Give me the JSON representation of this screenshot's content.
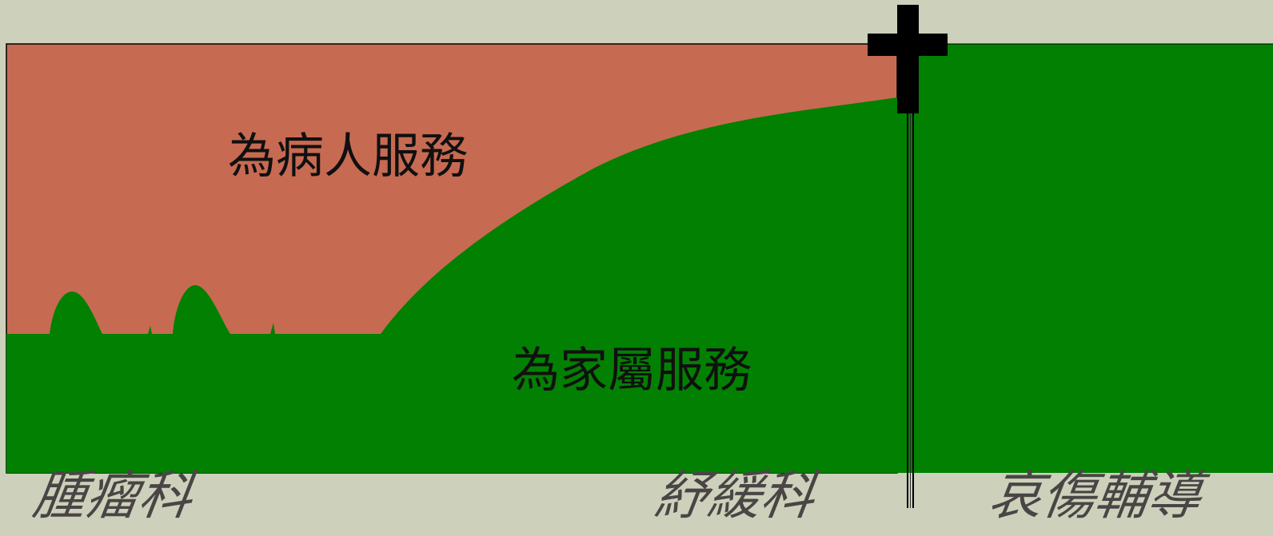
{
  "diagram": {
    "regions": {
      "patient_care": {
        "label": "為病人服務",
        "color": "#c76a52"
      },
      "family_care": {
        "label": "為家屬服務",
        "color": "#028002"
      }
    },
    "phases": [
      {
        "label": "腫瘤科"
      },
      {
        "label": "紓緩科"
      },
      {
        "label": "哀傷輔導"
      }
    ],
    "markers": {
      "death": {
        "icon": "cross-icon",
        "color": "#000000"
      }
    },
    "colors": {
      "background": "#cdd1bb",
      "phase_label": "#4a4545",
      "region_label": "#101010"
    }
  }
}
